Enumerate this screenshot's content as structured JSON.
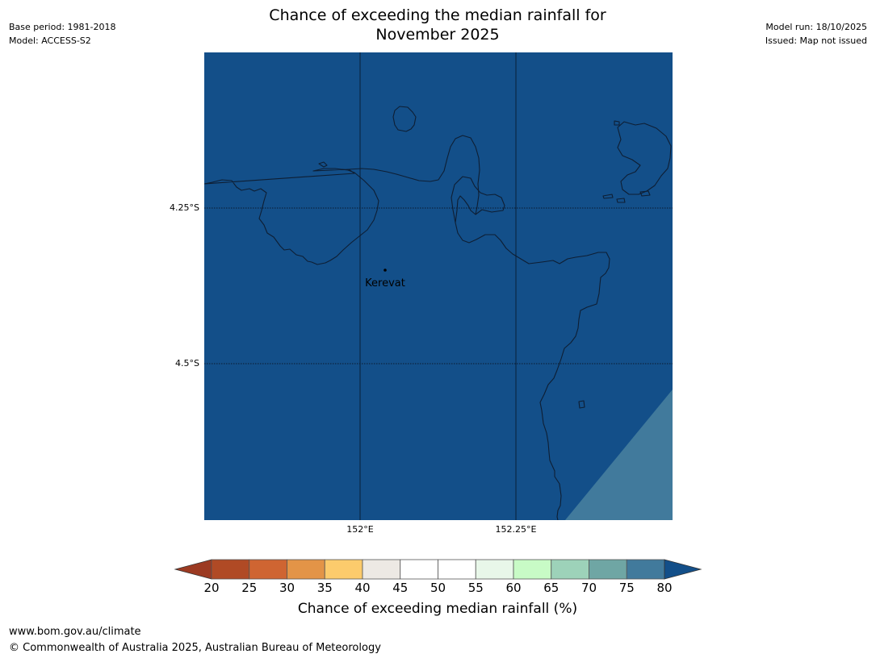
{
  "header": {
    "title_line1": "Chance of exceeding the median rainfall for",
    "title_line2": "November 2025",
    "base_period": "Base period: 1981-2018",
    "model": "Model: ACCESS-S2",
    "model_run": "Model run: 18/10/2025",
    "issued": "Issued: Map not issued"
  },
  "map": {
    "place_label": "Kerevat",
    "lat_labels": [
      "4.25°S",
      "4.5°S"
    ],
    "lon_labels": [
      "152°E",
      "152.25°E"
    ],
    "colors": {
      "ocean_fill": "#134f89",
      "lower_right_fill": "#417a9c",
      "coastline": "#0e1e33",
      "gridline": "#0a1a2e"
    }
  },
  "legend": {
    "title": "Chance of exceeding median rainfall (%)",
    "ticks": [
      "20",
      "25",
      "30",
      "35",
      "40",
      "45",
      "50",
      "55",
      "60",
      "65",
      "70",
      "75",
      "80"
    ],
    "colors": {
      "under": "#9c3a22",
      "bins": [
        "#b04a25",
        "#cf6532",
        "#e39447",
        "#fccb6c",
        "#ede9e4",
        "#ffffff",
        "#ffffff",
        "#e8f7e9",
        "#c8fbc6",
        "#9dd2b9",
        "#6fa6a4",
        "#417a9c"
      ],
      "over": "#134f89"
    }
  },
  "footer": {
    "url": "www.bom.gov.au/climate",
    "copyright": "© Commonwealth of Australia 2025, Australian Bureau of Meteorology"
  }
}
